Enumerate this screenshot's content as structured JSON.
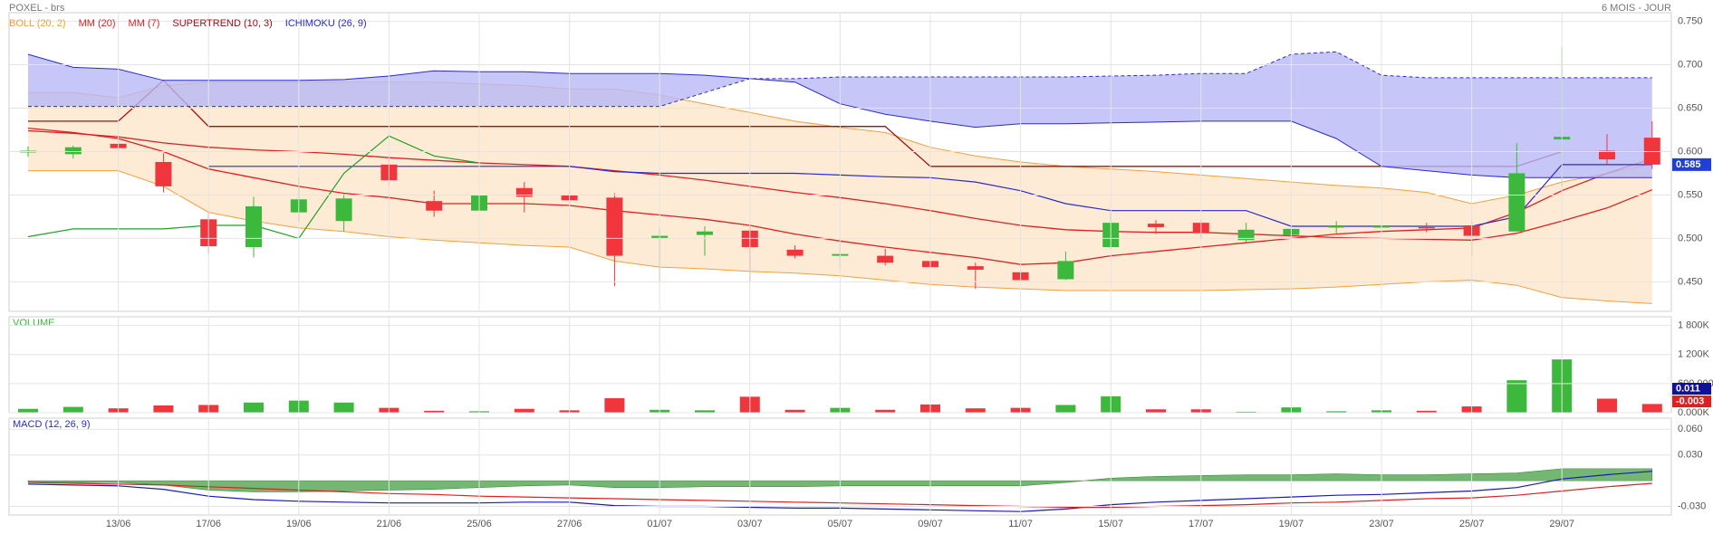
{
  "chart_data": [
    {
      "type": "candlestick",
      "title": "POXEL - brs",
      "subtitle": "6 MOIS - JOUR",
      "categories": [
        null,
        null,
        "13/06",
        null,
        "17/06",
        null,
        "19/06",
        null,
        "21/06",
        null,
        "25/06",
        null,
        "27/06",
        null,
        "01/07",
        null,
        "03/07",
        null,
        "05/07",
        null,
        "09/07",
        null,
        "11/07",
        null,
        "15/07",
        null,
        "17/07",
        null,
        "19/07",
        null,
        "23/07",
        null,
        "25/07",
        null,
        "29/07",
        null,
        null
      ],
      "open": [
        0.599,
        0.597,
        0.609,
        0.588,
        0.522,
        0.49,
        0.53,
        0.52,
        0.585,
        0.543,
        0.532,
        0.558,
        0.55,
        0.547,
        0.5,
        0.504,
        0.509,
        0.487,
        0.48,
        0.48,
        0.474,
        0.468,
        0.461,
        0.453,
        0.49,
        0.517,
        0.518,
        0.498,
        0.504,
        0.513,
        0.513,
        0.513,
        0.515,
        0.508,
        0.614,
        0.601,
        0.616
      ],
      "high": [
        0.606,
        0.607,
        0.616,
        0.598,
        0.53,
        0.548,
        0.57,
        0.552,
        0.59,
        0.555,
        0.555,
        0.565,
        0.555,
        0.552,
        0.512,
        0.514,
        0.515,
        0.492,
        0.495,
        0.488,
        0.478,
        0.472,
        0.464,
        0.485,
        0.53,
        0.521,
        0.521,
        0.518,
        0.515,
        0.52,
        0.517,
        0.518,
        0.52,
        0.61,
        0.72,
        0.62,
        0.635
      ],
      "low": [
        0.594,
        0.592,
        0.6,
        0.553,
        0.482,
        0.478,
        0.52,
        0.508,
        0.56,
        0.525,
        0.525,
        0.53,
        0.54,
        0.445,
        0.45,
        0.48,
        0.45,
        0.477,
        0.465,
        0.469,
        0.44,
        0.442,
        0.45,
        0.452,
        0.488,
        0.505,
        0.5,
        0.495,
        0.5,
        0.505,
        0.508,
        0.507,
        0.48,
        0.508,
        0.56,
        0.585,
        0.58
      ],
      "close": [
        0.601,
        0.605,
        0.604,
        0.56,
        0.491,
        0.537,
        0.545,
        0.546,
        0.567,
        0.532,
        0.55,
        0.548,
        0.544,
        0.48,
        0.503,
        0.508,
        0.49,
        0.48,
        0.482,
        0.472,
        0.467,
        0.464,
        0.452,
        0.474,
        0.518,
        0.513,
        0.506,
        0.51,
        0.511,
        0.514,
        0.514,
        0.512,
        0.503,
        0.575,
        0.617,
        0.591,
        0.585
      ],
      "up_color": "#3cb83c",
      "down_color": "#f0353d",
      "last_color": "#1f3fd8",
      "ylim": [
        0.416,
        0.76
      ],
      "yticks": [
        {
          "value": 0.45,
          "label": "0.450"
        },
        {
          "value": 0.5,
          "label": "0.500"
        },
        {
          "value": 0.55,
          "label": "0.550"
        },
        {
          "value": 0.6,
          "label": "0.600"
        },
        {
          "value": 0.65,
          "label": "0.650"
        },
        {
          "value": 0.7,
          "label": "0.700"
        },
        {
          "value": 0.75,
          "label": "0.750"
        }
      ],
      "grid": true,
      "indicators": [
        {
          "name": "BOLL (20, 2)",
          "kind": "band",
          "color": "#f0a040",
          "fill": "#fde3c3",
          "upper": [
            0.668,
            0.668,
            0.662,
            0.676,
            0.68,
            0.68,
            0.68,
            0.68,
            0.68,
            0.68,
            0.678,
            0.676,
            0.672,
            0.672,
            0.665,
            0.655,
            0.645,
            0.635,
            0.628,
            0.622,
            0.605,
            0.595,
            0.588,
            0.583,
            0.58,
            0.577,
            0.573,
            0.569,
            0.565,
            0.561,
            0.558,
            0.553,
            0.54,
            0.55,
            0.565,
            0.575,
            0.586
          ],
          "lower": [
            0.578,
            0.578,
            0.578,
            0.56,
            0.53,
            0.52,
            0.512,
            0.508,
            0.502,
            0.498,
            0.495,
            0.492,
            0.49,
            0.474,
            0.467,
            0.465,
            0.462,
            0.46,
            0.457,
            0.452,
            0.447,
            0.444,
            0.442,
            0.44,
            0.44,
            0.44,
            0.44,
            0.441,
            0.442,
            0.444,
            0.447,
            0.45,
            0.452,
            0.446,
            0.432,
            0.428,
            0.425
          ]
        },
        {
          "name": "MM (20)",
          "kind": "line",
          "color": "#e02020",
          "values": [
            0.624,
            0.621,
            0.617,
            0.61,
            0.605,
            0.602,
            0.6,
            0.597,
            0.593,
            0.59,
            0.587,
            0.585,
            0.583,
            0.578,
            0.573,
            0.567,
            0.56,
            0.553,
            0.547,
            0.54,
            0.532,
            0.523,
            0.515,
            0.51,
            0.508,
            0.507,
            0.507,
            0.505,
            0.503,
            0.501,
            0.5,
            0.499,
            0.498,
            0.506,
            0.52,
            0.535,
            0.556
          ]
        },
        {
          "name": "MM (7)",
          "kind": "line",
          "color": "#e02020",
          "values": [
            0.627,
            0.622,
            0.615,
            0.6,
            0.58,
            0.57,
            0.56,
            0.552,
            0.547,
            0.54,
            0.54,
            0.54,
            0.538,
            0.532,
            0.527,
            0.522,
            0.515,
            0.505,
            0.497,
            0.49,
            0.484,
            0.478,
            0.47,
            0.472,
            0.48,
            0.485,
            0.49,
            0.495,
            0.5,
            0.505,
            0.508,
            0.51,
            0.512,
            0.53,
            0.555,
            0.575,
            0.592
          ]
        },
        {
          "name": "SUPERTREND (10, 3)",
          "kind": "line",
          "color": "#a01010",
          "values": [
            0.635,
            0.635,
            0.635,
            0.682,
            0.629,
            0.629,
            0.629,
            0.629,
            0.629,
            0.629,
            0.629,
            0.629,
            0.629,
            0.629,
            0.629,
            0.629,
            0.629,
            0.629,
            0.629,
            0.629,
            0.583,
            0.583,
            0.583,
            0.583,
            0.583,
            0.583,
            0.583,
            0.583,
            0.583,
            0.583,
            0.583,
            0.583,
            0.583,
            0.583,
            0.6,
            0.6,
            0.6
          ]
        },
        {
          "name": "ICHIMOKU (26, 9)",
          "kind": "cloud",
          "color": "#2a2ad0",
          "fill": "#b8b8f6",
          "chikou_color": "#22a022",
          "span_a": [
            0.712,
            0.697,
            0.695,
            0.682,
            0.682,
            0.682,
            0.682,
            0.683,
            0.687,
            0.693,
            0.692,
            0.692,
            0.69,
            0.69,
            0.69,
            0.688,
            0.684,
            0.68,
            0.655,
            0.643,
            0.635,
            0.628,
            0.632,
            0.632,
            0.633,
            0.634,
            0.635,
            0.635,
            0.635,
            0.615,
            0.583,
            0.578,
            0.573,
            0.57,
            0.57,
            0.57,
            0.57
          ],
          "span_b": [
            0.652,
            0.652,
            0.652,
            0.652,
            0.652,
            0.652,
            0.652,
            0.652,
            0.652,
            0.652,
            0.652,
            0.652,
            0.652,
            0.652,
            0.652,
            0.668,
            0.684,
            0.684,
            0.686,
            0.686,
            0.686,
            0.686,
            0.686,
            0.686,
            0.687,
            0.688,
            0.69,
            0.69,
            0.712,
            0.715,
            0.688,
            0.685,
            0.685,
            0.685,
            0.685,
            0.685,
            0.685
          ],
          "kijun": [
            null,
            null,
            null,
            null,
            0.583,
            0.583,
            0.583,
            0.583,
            0.583,
            0.583,
            0.583,
            0.583,
            0.583,
            0.577,
            0.575,
            0.575,
            0.575,
            0.575,
            0.573,
            0.571,
            0.57,
            0.565,
            0.555,
            0.54,
            0.532,
            0.532,
            0.532,
            0.532,
            0.514,
            0.514,
            0.514,
            0.514,
            0.514,
            0.525,
            0.585,
            0.585,
            0.585
          ],
          "chikou": [
            0.502,
            0.511,
            0.511,
            0.511,
            0.515,
            0.515,
            0.5,
            0.575,
            0.618,
            0.595,
            0.587,
            null,
            null,
            null,
            null,
            null,
            null,
            null,
            null,
            null,
            null,
            null,
            null,
            null,
            null,
            null,
            null,
            null,
            null,
            null,
            null,
            null,
            null,
            null,
            null,
            null,
            null
          ]
        }
      ]
    },
    {
      "type": "bar",
      "title": "VOLUME",
      "title_color": "#3cb83c",
      "values": [
        80000,
        120000,
        90000,
        150000,
        160000,
        210000,
        250000,
        210000,
        100000,
        40000,
        30000,
        80000,
        50000,
        300000,
        60000,
        50000,
        330000,
        60000,
        100000,
        60000,
        170000,
        90000,
        100000,
        160000,
        340000,
        70000,
        70000,
        20000,
        110000,
        30000,
        50000,
        40000,
        130000,
        670000,
        1100000,
        290000,
        180000
      ],
      "ylim": [
        0,
        1980000
      ],
      "yticks": [
        {
          "value": 0,
          "label": "0.000K"
        },
        {
          "value": 600000,
          "label": "600.000K"
        },
        {
          "value": 1200000,
          "label": "1 200K"
        },
        {
          "value": 1800000,
          "label": "1 800K"
        }
      ],
      "grid": true
    },
    {
      "type": "line",
      "title": "MACD (12, 26, 9)",
      "title_color": "#2a2ad0",
      "series": [
        {
          "kind": "area",
          "color": "#5aaa5a",
          "values": [
            -0.002,
            -0.002,
            -0.002,
            -0.005,
            -0.011,
            -0.013,
            -0.013,
            -0.012,
            -0.011,
            -0.01,
            -0.008,
            -0.006,
            -0.005,
            -0.008,
            -0.008,
            -0.007,
            -0.007,
            -0.007,
            -0.006,
            -0.006,
            -0.006,
            -0.006,
            -0.006,
            -0.002,
            0.003,
            0.005,
            0.006,
            0.007,
            0.007,
            0.008,
            0.007,
            0.007,
            0.008,
            0.009,
            0.014,
            0.014,
            0.014
          ]
        },
        {
          "kind": "line",
          "color": "#1a1ab8",
          "tag_color": "#10109a",
          "values": [
            -0.004,
            -0.005,
            -0.006,
            -0.01,
            -0.018,
            -0.022,
            -0.024,
            -0.025,
            -0.026,
            -0.026,
            -0.026,
            -0.025,
            -0.025,
            -0.029,
            -0.03,
            -0.03,
            -0.031,
            -0.032,
            -0.032,
            -0.033,
            -0.034,
            -0.035,
            -0.036,
            -0.033,
            -0.028,
            -0.025,
            -0.023,
            -0.021,
            -0.019,
            -0.017,
            -0.016,
            -0.014,
            -0.012,
            -0.008,
            0.002,
            0.007,
            0.011
          ]
        },
        {
          "kind": "line",
          "color": "#e02020",
          "tag_color": "#e02020",
          "values": [
            -0.002,
            -0.003,
            -0.004,
            -0.005,
            -0.007,
            -0.009,
            -0.011,
            -0.013,
            -0.015,
            -0.016,
            -0.018,
            -0.019,
            -0.02,
            -0.021,
            -0.022,
            -0.023,
            -0.024,
            -0.025,
            -0.026,
            -0.027,
            -0.028,
            -0.029,
            -0.03,
            -0.031,
            -0.031,
            -0.03,
            -0.029,
            -0.028,
            -0.026,
            -0.025,
            -0.023,
            -0.021,
            -0.02,
            -0.017,
            -0.012,
            -0.007,
            -0.003
          ]
        }
      ],
      "ylim": [
        -0.04,
        0.073
      ],
      "yticks": [
        {
          "value": -0.03,
          "label": "-0.030"
        },
        {
          "value": 0.03,
          "label": "0.030"
        },
        {
          "value": 0.06,
          "label": "0.060"
        }
      ],
      "grid": true
    }
  ]
}
